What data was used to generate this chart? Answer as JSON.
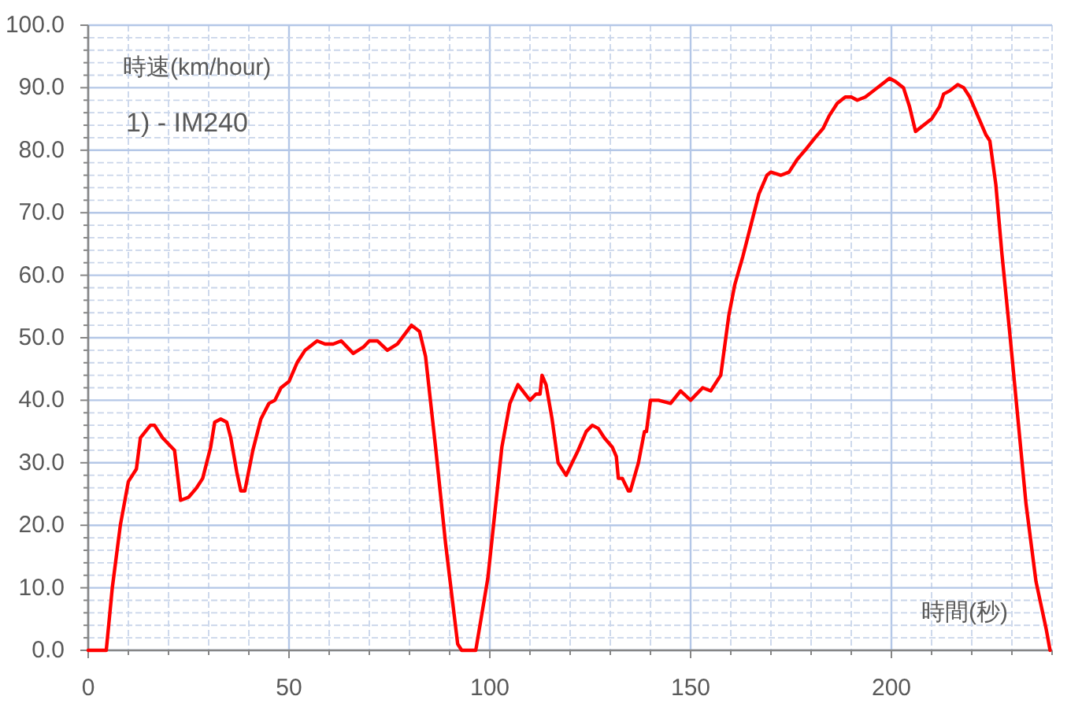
{
  "chart_data": {
    "type": "line",
    "title": "1) - IM240",
    "ylabel": "時速(km/hour)",
    "xlabel": "時間(秒)",
    "x": [
      0,
      4.5,
      6,
      8,
      10,
      12,
      13,
      15.5,
      16.5,
      18.5,
      21.5,
      23,
      25,
      27,
      28.5,
      30.5,
      31.5,
      33,
      34.5,
      35.5,
      37,
      38,
      39,
      41,
      43,
      45,
      46.5,
      48,
      50,
      52,
      54,
      55,
      57,
      59,
      61,
      63,
      66,
      68.5,
      70,
      72,
      74.5,
      77,
      80.5,
      82.5,
      84,
      86.5,
      89,
      92,
      93,
      96.5,
      99.5,
      103,
      105,
      107,
      110,
      111.5,
      112.5,
      113,
      114,
      115.5,
      117,
      119,
      120.5,
      122,
      124,
      125.5,
      127,
      128.5,
      130.5,
      131.5,
      132,
      133,
      134.5,
      135,
      137,
      138.5,
      139,
      140,
      142,
      145,
      147.5,
      150,
      153,
      155,
      157.5,
      159.5,
      161,
      163,
      165,
      167,
      169,
      170,
      172.5,
      174.5,
      176.5,
      178.5,
      181,
      183,
      184.5,
      186.5,
      188.5,
      190,
      191.5,
      193.5,
      195.5,
      197.5,
      199.5,
      201,
      203,
      204.5,
      206,
      208,
      210,
      212,
      213,
      214.5,
      216.5,
      218,
      219.5,
      221.5,
      223.5,
      224.5,
      226,
      227.5,
      229.5,
      231.5,
      233.5,
      236,
      238.5,
      239.5
    ],
    "series": [
      {
        "color": "#ff0000",
        "values": [
          0,
          0,
          10,
          20,
          27,
          29,
          34,
          36,
          36,
          34,
          32,
          24,
          24.5,
          26,
          27.5,
          32.5,
          36.5,
          37,
          36.5,
          34,
          28.5,
          25.5,
          25.5,
          32,
          37,
          39.5,
          40,
          42,
          43,
          46,
          48,
          48.5,
          49.5,
          49,
          49,
          49.5,
          47.5,
          48.5,
          49.5,
          49.5,
          48,
          49,
          52,
          51,
          47,
          32.5,
          17,
          1,
          0,
          0,
          11.5,
          32.5,
          39.5,
          42.5,
          40,
          41,
          41,
          44,
          42.5,
          37,
          30,
          28,
          30,
          32,
          35,
          36,
          35.5,
          34,
          32.5,
          31,
          27.5,
          27.5,
          25.5,
          25.5,
          30,
          35,
          35,
          40,
          40,
          39.5,
          41.5,
          40,
          42,
          41.5,
          44,
          53.5,
          58.5,
          63,
          68,
          73,
          76,
          76.5,
          76,
          76.5,
          78.5,
          80,
          82,
          83.5,
          85.5,
          87.5,
          88.5,
          88.5,
          88,
          88.5,
          89.5,
          90.5,
          91.5,
          91,
          90,
          87,
          83,
          84,
          85,
          87,
          89,
          89.5,
          90.5,
          90,
          88.5,
          85.5,
          82.5,
          81.5,
          74.5,
          63.5,
          50.5,
          37,
          23.5,
          11,
          3.5,
          0
        ]
      }
    ],
    "xlim": [
      0,
      240
    ],
    "xticks": [
      0,
      {
        "value": 10,
        "label": null
      },
      {
        "value": 20,
        "label": null
      },
      {
        "value": 30,
        "label": null
      },
      {
        "value": 40,
        "label": null
      },
      50,
      {
        "value": 60,
        "label": null
      },
      {
        "value": 70,
        "label": null
      },
      {
        "value": 80,
        "label": null
      },
      {
        "value": 90,
        "label": null
      },
      100,
      {
        "value": 110,
        "label": null
      },
      {
        "value": 120,
        "label": null
      },
      {
        "value": 130,
        "label": null
      },
      {
        "value": 140,
        "label": null
      },
      150,
      {
        "value": 160,
        "label": null
      },
      {
        "value": 170,
        "label": null
      },
      {
        "value": 180,
        "label": null
      },
      {
        "value": 190,
        "label": null
      },
      200,
      {
        "value": 210,
        "label": null
      },
      {
        "value": 220,
        "label": null
      },
      {
        "value": 230,
        "label": null
      },
      {
        "value": 240,
        "label": null
      }
    ],
    "ylim": [
      0,
      100
    ],
    "yticks": [
      {
        "value": 0,
        "label": "0.0"
      },
      {
        "value": 2,
        "label": null
      },
      {
        "value": 4,
        "label": null
      },
      {
        "value": 6,
        "label": null
      },
      {
        "value": 8,
        "label": null
      },
      {
        "value": 10,
        "label": "10.0"
      },
      {
        "value": 12,
        "label": null
      },
      {
        "value": 14,
        "label": null
      },
      {
        "value": 16,
        "label": null
      },
      {
        "value": 18,
        "label": null
      },
      {
        "value": 20,
        "label": "20.0"
      },
      {
        "value": 22,
        "label": null
      },
      {
        "value": 24,
        "label": null
      },
      {
        "value": 26,
        "label": null
      },
      {
        "value": 28,
        "label": null
      },
      {
        "value": 30,
        "label": "30.0"
      },
      {
        "value": 32,
        "label": null
      },
      {
        "value": 34,
        "label": null
      },
      {
        "value": 36,
        "label": null
      },
      {
        "value": 38,
        "label": null
      },
      {
        "value": 40,
        "label": "40.0"
      },
      {
        "value": 42,
        "label": null
      },
      {
        "value": 44,
        "label": null
      },
      {
        "value": 46,
        "label": null
      },
      {
        "value": 48,
        "label": null
      },
      {
        "value": 50,
        "label": "50.0"
      },
      {
        "value": 52,
        "label": null
      },
      {
        "value": 54,
        "label": null
      },
      {
        "value": 56,
        "label": null
      },
      {
        "value": 58,
        "label": null
      },
      {
        "value": 60,
        "label": "60.0"
      },
      {
        "value": 62,
        "label": null
      },
      {
        "value": 64,
        "label": null
      },
      {
        "value": 66,
        "label": null
      },
      {
        "value": 68,
        "label": null
      },
      {
        "value": 70,
        "label": "70.0"
      },
      {
        "value": 72,
        "label": null
      },
      {
        "value": 74,
        "label": null
      },
      {
        "value": 76,
        "label": null
      },
      {
        "value": 78,
        "label": null
      },
      {
        "value": 80,
        "label": "80.0"
      },
      {
        "value": 82,
        "label": null
      },
      {
        "value": 84,
        "label": null
      },
      {
        "value": 86,
        "label": null
      },
      {
        "value": 88,
        "label": null
      },
      {
        "value": 90,
        "label": "90.0"
      },
      {
        "value": 92,
        "label": null
      },
      {
        "value": 94,
        "label": null
      },
      {
        "value": 96,
        "label": null
      },
      {
        "value": 98,
        "label": null
      },
      {
        "value": 100,
        "label": "100.0"
      }
    ],
    "grid": true,
    "line_style": "solid"
  }
}
